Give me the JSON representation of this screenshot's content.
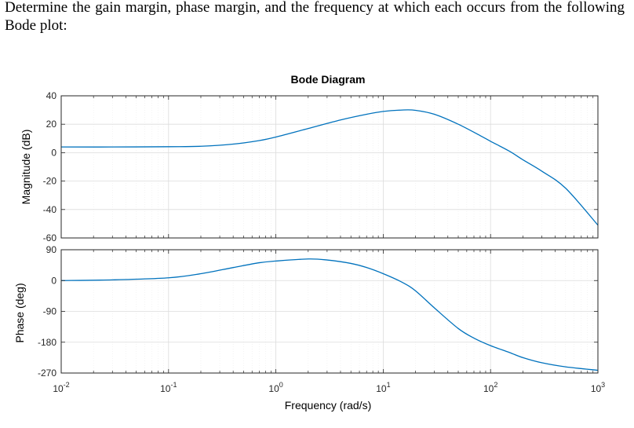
{
  "question": {
    "text": "Determine the gain margin, phase margin, and the frequency at which each occurs from the following Bode plot:"
  },
  "chart_data": {
    "type": "line",
    "title": "Bode Diagram",
    "xlabel": "Frequency  (rad/s)",
    "xscale": "log",
    "xlim": [
      0.01,
      1000
    ],
    "x_tick_bases": [
      "10",
      "10",
      "10",
      "10",
      "10",
      "10"
    ],
    "x_tick_exponents": [
      "-2",
      "-1",
      "0",
      "1",
      "2",
      "3"
    ],
    "grid": true,
    "line_color": "#0072bd",
    "magnitude": {
      "ylabel": "Magnitude (dB)",
      "ylim": [
        -60,
        40
      ],
      "yticks": [
        "40",
        "20",
        "0",
        "-20",
        "-40",
        "-60"
      ],
      "x": [
        0.01,
        0.03,
        0.1,
        0.2,
        0.4,
        0.7,
        1,
        2,
        4,
        7,
        10,
        15,
        20,
        30,
        50,
        80,
        100,
        150,
        200,
        300,
        500,
        1000
      ],
      "y": [
        4,
        4,
        4.2,
        4.5,
        6,
        8.5,
        11,
        17,
        23,
        27,
        29,
        30,
        29.8,
        27,
        20,
        12,
        8,
        1,
        -5,
        -13,
        -25,
        -51
      ]
    },
    "phase": {
      "ylabel": "Phase (deg)",
      "ylim": [
        -270,
        90
      ],
      "yticks": [
        "90",
        "0",
        "-90",
        "-180",
        "-270"
      ],
      "x": [
        0.01,
        0.03,
        0.1,
        0.2,
        0.4,
        0.7,
        1,
        2,
        3,
        5,
        7,
        10,
        15,
        20,
        30,
        50,
        70,
        100,
        150,
        200,
        300,
        500,
        1000
      ],
      "y": [
        0,
        2,
        8,
        20,
        38,
        52,
        57,
        63,
        60,
        50,
        38,
        20,
        -5,
        -30,
        -80,
        -140,
        -168,
        -190,
        -210,
        -225,
        -240,
        -252,
        -262
      ]
    }
  }
}
